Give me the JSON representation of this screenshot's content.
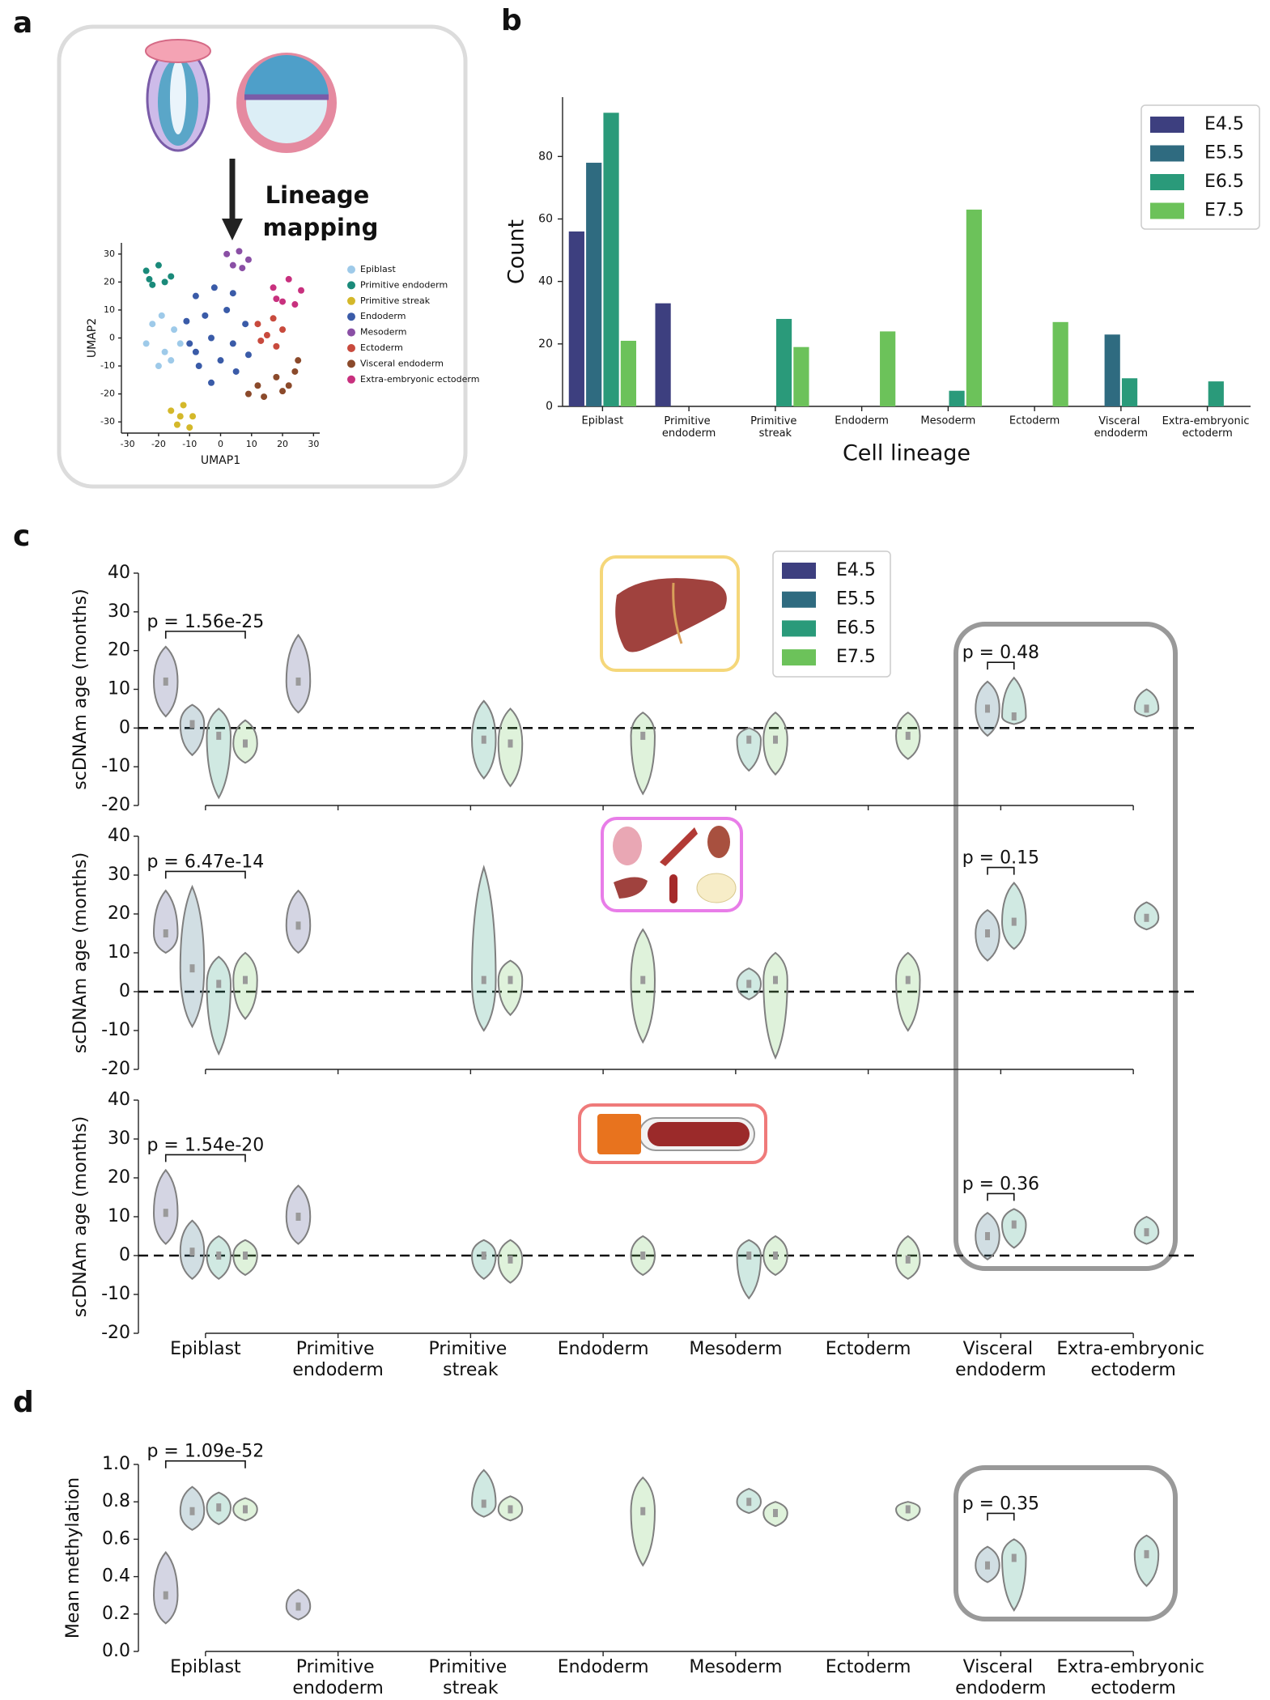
{
  "chart_data": [
    {
      "type": "scatter",
      "panel_label": "a",
      "annotations": [
        "Lineage",
        "mapping"
      ],
      "xlabel": "UMAP1",
      "ylabel": "UMAP2",
      "xlim": [
        -32,
        32
      ],
      "ylim": [
        -34,
        34
      ],
      "xticks": [
        -30,
        -20,
        -10,
        0,
        10,
        20,
        30
      ],
      "yticks": [
        -30,
        -20,
        -10,
        0,
        10,
        20,
        30
      ],
      "series": [
        {
          "name": "Epiblast",
          "color": "#9ecae9",
          "x": [
            -22,
            -19,
            -15,
            -24,
            -18,
            -13,
            -20,
            -16
          ],
          "y": [
            5,
            8,
            3,
            -2,
            -5,
            -2,
            -10,
            -8
          ]
        },
        {
          "name": "Primitive endoderm",
          "color": "#1a8a7a",
          "x": [
            -24,
            -20,
            -16,
            -22,
            -18,
            -23
          ],
          "y": [
            24,
            26,
            22,
            19,
            20,
            21
          ]
        },
        {
          "name": "Primitive streak",
          "color": "#d4b82a",
          "x": [
            -16,
            -12,
            -9,
            -14,
            -10,
            -13
          ],
          "y": [
            -26,
            -24,
            -28,
            -31,
            -32,
            -28
          ]
        },
        {
          "name": "Endoderm",
          "color": "#3a5ba8",
          "x": [
            -8,
            -2,
            4,
            -11,
            -5,
            2,
            8,
            -10,
            -3,
            4,
            9,
            -7,
            0,
            5,
            -3,
            -8
          ],
          "y": [
            15,
            18,
            16,
            6,
            8,
            10,
            5,
            -2,
            0,
            -2,
            -6,
            -10,
            -8,
            -12,
            -16,
            -5
          ]
        },
        {
          "name": "Mesoderm",
          "color": "#8a4fa5",
          "x": [
            2,
            6,
            9,
            4,
            7
          ],
          "y": [
            30,
            31,
            28,
            26,
            25
          ]
        },
        {
          "name": "Ectoderm",
          "color": "#c84a3d",
          "x": [
            12,
            17,
            20,
            13,
            18,
            15
          ],
          "y": [
            5,
            7,
            3,
            -1,
            -3,
            1
          ]
        },
        {
          "name": "Visceral endoderm",
          "color": "#8b4a2b",
          "x": [
            9,
            14,
            20,
            24,
            18,
            22,
            12,
            25
          ],
          "y": [
            -20,
            -21,
            -19,
            -12,
            -14,
            -17,
            -17,
            -8
          ]
        },
        {
          "name": "Extra-embryonic ectoderm",
          "color": "#c8307e",
          "x": [
            17,
            22,
            26,
            20,
            24,
            18
          ],
          "y": [
            18,
            21,
            17,
            13,
            12,
            14
          ]
        }
      ]
    },
    {
      "type": "bar",
      "panel_label": "b",
      "xlabel": "Cell lineage",
      "ylabel": "Count",
      "categories": [
        "Epiblast",
        "Primitive endoderm",
        "Primitive streak",
        "Endoderm",
        "Mesoderm",
        "Ectoderm",
        "Visceral endoderm",
        "Extra-embryonic ectoderm"
      ],
      "ylim": [
        0,
        99
      ],
      "yticks": [
        0,
        20,
        40,
        60,
        80
      ],
      "series": [
        {
          "name": "E4.5",
          "color": "#3d3f7f",
          "values": [
            56,
            33,
            0,
            0,
            0,
            0,
            0,
            0
          ]
        },
        {
          "name": "E5.5",
          "color": "#2f6b80",
          "values": [
            78,
            0,
            0,
            0,
            0,
            0,
            23,
            0
          ]
        },
        {
          "name": "E6.5",
          "color": "#2a9a7a",
          "values": [
            94,
            0,
            28,
            0,
            5,
            0,
            9,
            8
          ]
        },
        {
          "name": "E7.5",
          "color": "#6cc25a",
          "values": [
            21,
            0,
            19,
            24,
            63,
            27,
            0,
            0
          ]
        }
      ]
    },
    {
      "type": "violin",
      "panel_label": "c",
      "categories": [
        "Epiblast",
        "Primitive endoderm",
        "Primitive streak",
        "Endoderm",
        "Mesoderm",
        "Ectoderm",
        "Visceral endoderm",
        "Extra-embryonic ectoderm"
      ],
      "ylim": [
        -20,
        40
      ],
      "yticks": [
        -20,
        -10,
        0,
        10,
        20,
        30,
        40
      ],
      "reference_line": 0,
      "series": [
        {
          "name": "E4.5",
          "color": "#3d3f7f"
        },
        {
          "name": "E5.5",
          "color": "#2f6b80"
        },
        {
          "name": "E6.5",
          "color": "#2a9a7a"
        },
        {
          "name": "E7.5",
          "color": "#6cc25a"
        }
      ],
      "panels": [
        {
          "ylabel": "scDNAm age (months)",
          "annotations": [
            "p = 1.56e-25",
            "p = 0.48"
          ],
          "stats": [
            {
              "min": [
                3,
                4,
                null,
                null,
                null,
                null,
                null,
                null
              ],
              "median": [
                12,
                12,
                null,
                null,
                null,
                null,
                null,
                null
              ],
              "max": [
                21,
                24,
                null,
                null,
                null,
                null,
                null,
                null
              ]
            },
            {
              "min": [
                -7,
                null,
                null,
                null,
                null,
                null,
                -2,
                null
              ],
              "median": [
                1,
                null,
                null,
                null,
                null,
                null,
                5,
                null
              ],
              "max": [
                6,
                null,
                null,
                null,
                null,
                null,
                12,
                null
              ]
            },
            {
              "min": [
                -18,
                null,
                -13,
                null,
                -11,
                null,
                1,
                3
              ],
              "median": [
                -2,
                null,
                -3,
                null,
                -3,
                null,
                3,
                5
              ],
              "max": [
                5,
                null,
                7,
                null,
                0,
                null,
                13,
                10
              ]
            },
            {
              "min": [
                -9,
                null,
                -15,
                -17,
                -12,
                -8,
                null,
                null
              ],
              "median": [
                -4,
                null,
                -4,
                -2,
                -3,
                -2,
                null,
                null
              ],
              "max": [
                2,
                null,
                5,
                4,
                4,
                4,
                null,
                null
              ]
            }
          ]
        },
        {
          "ylabel": "scDNAm age (months)",
          "annotations": [
            "p = 6.47e-14",
            "p = 0.15"
          ],
          "stats": [
            {
              "min": [
                10,
                10,
                null,
                null,
                null,
                null,
                null,
                null
              ],
              "median": [
                15,
                17,
                null,
                null,
                null,
                null,
                null,
                null
              ],
              "max": [
                26,
                26,
                null,
                null,
                null,
                null,
                null,
                null
              ]
            },
            {
              "min": [
                -9,
                null,
                null,
                null,
                null,
                null,
                8,
                null
              ],
              "median": [
                6,
                null,
                null,
                null,
                null,
                null,
                15,
                null
              ],
              "max": [
                27,
                null,
                null,
                null,
                null,
                null,
                21,
                null
              ]
            },
            {
              "min": [
                -16,
                null,
                -10,
                null,
                -2,
                null,
                11,
                16
              ],
              "median": [
                2,
                null,
                3,
                null,
                2,
                null,
                18,
                19
              ],
              "max": [
                9,
                null,
                32,
                null,
                6,
                null,
                28,
                23
              ]
            },
            {
              "min": [
                -7,
                null,
                -6,
                -13,
                -17,
                -10,
                null,
                null
              ],
              "median": [
                3,
                null,
                3,
                3,
                3,
                3,
                null,
                null
              ],
              "max": [
                10,
                null,
                8,
                16,
                10,
                10,
                null,
                null
              ]
            }
          ]
        },
        {
          "ylabel": "scDNAm age (months)",
          "annotations": [
            "p = 1.54e-20",
            "p = 0.36"
          ],
          "stats": [
            {
              "min": [
                3,
                3,
                null,
                null,
                null,
                null,
                null,
                null
              ],
              "median": [
                11,
                10,
                null,
                null,
                null,
                null,
                null,
                null
              ],
              "max": [
                22,
                18,
                null,
                null,
                null,
                null,
                null,
                null
              ]
            },
            {
              "min": [
                -6,
                null,
                null,
                null,
                null,
                null,
                -1,
                null
              ],
              "median": [
                1,
                null,
                null,
                null,
                null,
                null,
                5,
                null
              ],
              "max": [
                9,
                null,
                null,
                null,
                null,
                null,
                11,
                null
              ]
            },
            {
              "min": [
                -6,
                null,
                -6,
                null,
                -11,
                null,
                2,
                3
              ],
              "median": [
                0,
                null,
                0,
                null,
                0,
                null,
                8,
                6
              ],
              "max": [
                5,
                null,
                4,
                null,
                4,
                null,
                12,
                10
              ]
            },
            {
              "min": [
                -5,
                null,
                -7,
                -5,
                -5,
                -6,
                null,
                null
              ],
              "median": [
                0,
                null,
                -1,
                0,
                0,
                -1,
                null,
                null
              ],
              "max": [
                4,
                null,
                4,
                5,
                5,
                5,
                null,
                null
              ]
            }
          ]
        }
      ]
    },
    {
      "type": "violin",
      "panel_label": "d",
      "categories": [
        "Epiblast",
        "Primitive endoderm",
        "Primitive streak",
        "Endoderm",
        "Mesoderm",
        "Ectoderm",
        "Visceral endoderm",
        "Extra-embryonic ectoderm"
      ],
      "ylim": [
        0,
        1
      ],
      "yticks": [
        {
          "value": 0,
          "label": "0.0"
        },
        0.2,
        0.4,
        0.6,
        0.8,
        {
          "value": 1,
          "label": "1.0"
        }
      ],
      "series": [
        {
          "color": "#3d3f7f"
        },
        {
          "color": "#2f6b80"
        },
        {
          "color": "#2a9a7a"
        },
        {
          "color": "#6cc25a"
        }
      ],
      "panels": [
        {
          "ylabel": "Mean methylation",
          "annotations": [
            "p = 1.09e-52",
            "p = 0.35"
          ],
          "stats": [
            {
              "min": [
                0.15,
                0.17,
                null,
                null,
                null,
                null,
                null,
                null
              ],
              "median": [
                0.3,
                0.24,
                null,
                null,
                null,
                null,
                null,
                null
              ],
              "max": [
                0.53,
                0.33,
                null,
                null,
                null,
                null,
                null,
                null
              ]
            },
            {
              "min": [
                0.65,
                null,
                null,
                null,
                null,
                null,
                0.37,
                null
              ],
              "median": [
                0.75,
                null,
                null,
                null,
                null,
                null,
                0.46,
                null
              ],
              "max": [
                0.88,
                null,
                null,
                null,
                null,
                null,
                0.56,
                null
              ]
            },
            {
              "min": [
                0.68,
                null,
                0.72,
                null,
                0.74,
                null,
                0.22,
                0.35
              ],
              "median": [
                0.77,
                null,
                0.79,
                null,
                0.8,
                null,
                0.5,
                0.52
              ],
              "max": [
                0.85,
                null,
                0.97,
                null,
                0.87,
                null,
                0.6,
                0.62
              ]
            },
            {
              "min": [
                0.7,
                null,
                0.7,
                0.46,
                0.67,
                0.7,
                null,
                null
              ],
              "median": [
                0.76,
                null,
                0.76,
                0.75,
                0.74,
                0.76,
                null,
                null
              ],
              "max": [
                0.82,
                null,
                0.83,
                0.93,
                0.8,
                0.8,
                null,
                null
              ]
            }
          ]
        }
      ]
    }
  ]
}
